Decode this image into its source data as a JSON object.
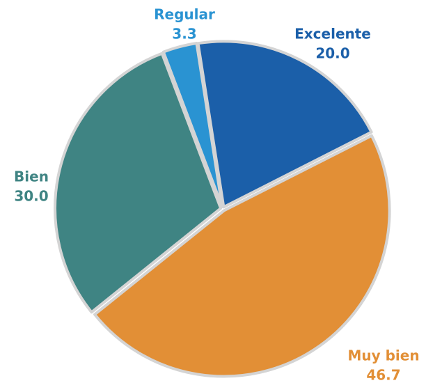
{
  "chart_data": {
    "type": "pie",
    "categories": [
      "Excelente",
      "Muy bien",
      "Bien",
      "Regular"
    ],
    "values": [
      20.0,
      46.7,
      30.0,
      3.3
    ],
    "value_labels": [
      "20.0",
      "46.7",
      "30.0",
      "3.3"
    ],
    "colors": [
      "#1b5fa9",
      "#e28f36",
      "#3f8483",
      "#2a93d2"
    ]
  }
}
